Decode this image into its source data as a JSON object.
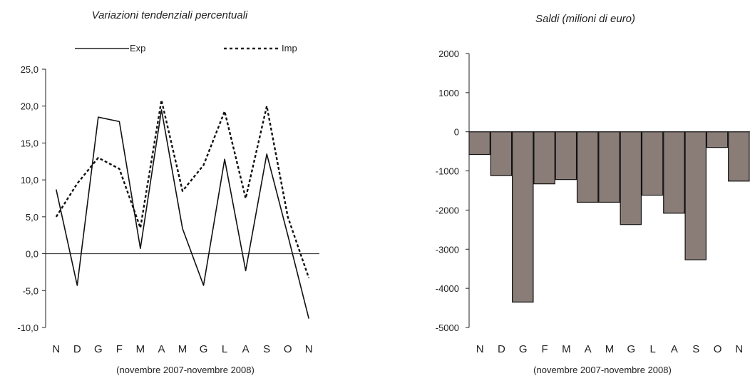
{
  "chart_data": [
    {
      "type": "line",
      "title": "Variazioni tendenziali percentuali",
      "caption": "(novembre 2007-novembre 2008)",
      "categories": [
        "N",
        "D",
        "G",
        "F",
        "M",
        "A",
        "M",
        "G",
        "L",
        "A",
        "S",
        "O",
        "N"
      ],
      "ylim": [
        -10,
        25
      ],
      "yticks": [
        "25,0",
        "20,0",
        "15,0",
        "10,0",
        "5,0",
        "0,0",
        "-5,0",
        "-10,0"
      ],
      "ytick_values": [
        25,
        20,
        15,
        10,
        5,
        0,
        -5,
        -10
      ],
      "legend_position": "top",
      "series": [
        {
          "name": "Exp",
          "style": "solid",
          "values": [
            8.7,
            -4.3,
            18.5,
            17.9,
            0.7,
            19.5,
            3.4,
            -4.3,
            12.8,
            -2.3,
            13.5,
            2.5,
            -8.8
          ]
        },
        {
          "name": "Imp",
          "style": "dotted",
          "values": [
            5.0,
            9.5,
            13.0,
            11.5,
            3.5,
            20.8,
            8.5,
            12.0,
            19.3,
            7.5,
            20.0,
            5.0,
            -3.3
          ]
        }
      ]
    },
    {
      "type": "bar",
      "title": "Saldi (milioni di euro)",
      "caption": "(novembre 2007-novembre 2008)",
      "categories": [
        "N",
        "D",
        "G",
        "F",
        "M",
        "A",
        "M",
        "G",
        "L",
        "A",
        "S",
        "O",
        "N"
      ],
      "values": [
        -580,
        -1120,
        -4350,
        -1330,
        -1220,
        -1800,
        -1800,
        -2370,
        -1620,
        -2080,
        -3270,
        -400,
        -1260
      ],
      "ylim": [
        -5000,
        2000
      ],
      "yticks": [
        "2000",
        "1000",
        "0",
        "-1000",
        "-2000",
        "-3000",
        "-4000",
        "-5000"
      ],
      "ytick_values": [
        2000,
        1000,
        0,
        -1000,
        -2000,
        -3000,
        -4000,
        -5000
      ],
      "bar_color": "#8a7d78"
    }
  ]
}
